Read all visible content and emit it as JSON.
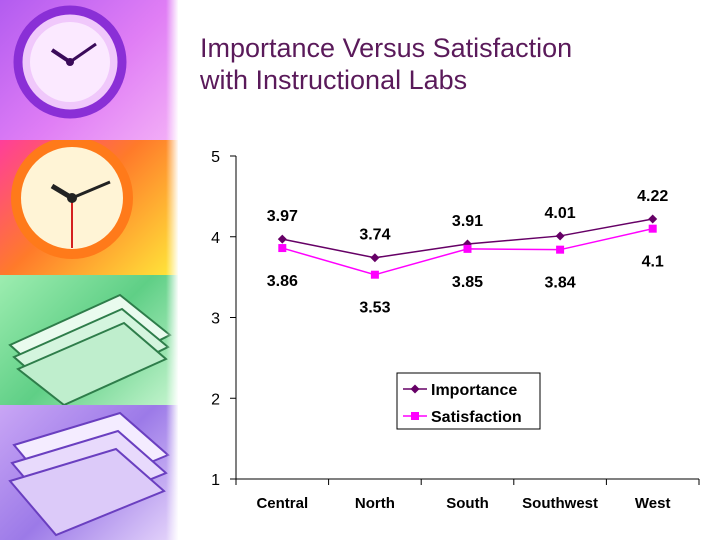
{
  "slide": {
    "title_line1": "Importance Versus Satisfaction",
    "title_line2": "with Instructional Labs"
  },
  "sidebar": {
    "panels": [
      {
        "name": "purple-clock",
        "icon": "clock-icon",
        "color": "#c56cf2"
      },
      {
        "name": "orange-clock",
        "icon": "clock-icon",
        "color": "#ff8a2a"
      },
      {
        "name": "green-books",
        "icon": "books-icon",
        "color": "#7ddc9b"
      },
      {
        "name": "violet-books",
        "icon": "books-icon",
        "color": "#b08df0"
      }
    ]
  },
  "chart_data": {
    "type": "line",
    "categories": [
      "Central",
      "North",
      "South",
      "Southwest",
      "West"
    ],
    "ylim": [
      1,
      5
    ],
    "yticks": [
      1,
      2,
      3,
      4,
      5
    ],
    "grid": false,
    "legend_position": "center-right",
    "series": [
      {
        "name": "Importance",
        "values": [
          3.97,
          3.74,
          3.91,
          4.01,
          4.22
        ],
        "labels": [
          "3.97",
          "3.74",
          "3.91",
          "4.01",
          "4.22"
        ],
        "color": "#660066",
        "marker": "diamond"
      },
      {
        "name": "Satisfaction",
        "values": [
          3.86,
          3.53,
          3.85,
          3.84,
          4.1
        ],
        "labels": [
          "3.86",
          "3.53",
          "3.85",
          "3.84",
          "4.1"
        ],
        "color": "#ff00ff",
        "marker": "square"
      }
    ]
  }
}
